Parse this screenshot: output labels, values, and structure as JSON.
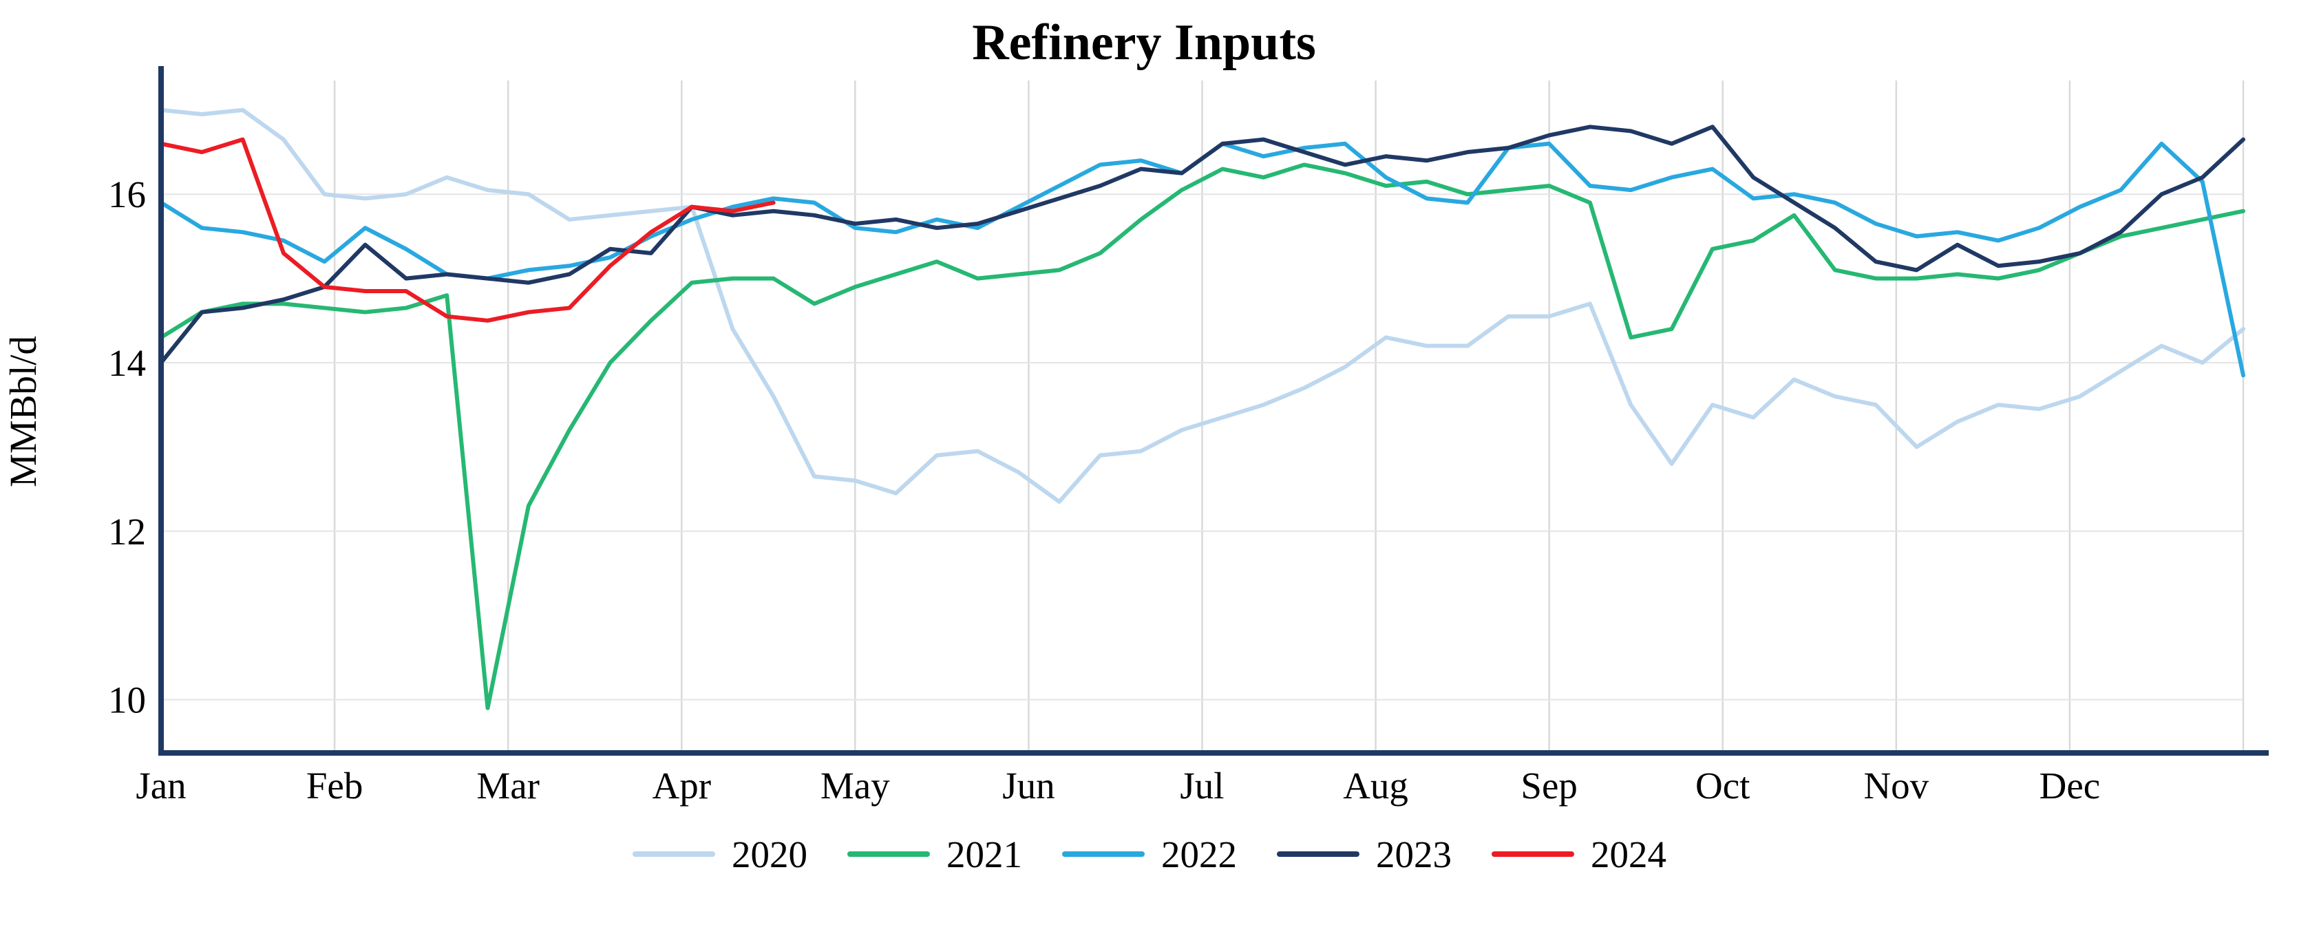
{
  "chart_data": {
    "type": "line",
    "title": "Refinery Inputs",
    "ylabel": "MMBbl/d",
    "xlabel": "",
    "x_unit": "week-of-year",
    "weeks_per_year": 52,
    "month_labels": [
      "Jan",
      "Feb",
      "Mar",
      "Apr",
      "May",
      "Jun",
      "Jul",
      "Aug",
      "Sep",
      "Oct",
      "Nov",
      "Dec"
    ],
    "y_ticks": [
      10,
      12,
      14,
      16
    ],
    "ylim": [
      9.4,
      17.35
    ],
    "grid": true,
    "legend_position": "bottom",
    "axis_color": "#1f3864",
    "grid_color": "#d9d9d9",
    "series": [
      {
        "name": "2020",
        "color": "#bdd7ee",
        "values": [
          17.0,
          16.95,
          17.0,
          16.65,
          16.0,
          15.95,
          16.0,
          16.2,
          16.05,
          16.0,
          15.7,
          15.75,
          15.8,
          15.85,
          14.4,
          13.6,
          12.65,
          12.6,
          12.45,
          12.9,
          12.95,
          12.7,
          12.35,
          12.9,
          12.95,
          13.2,
          13.35,
          13.5,
          13.7,
          13.95,
          14.3,
          14.2,
          14.2,
          14.55,
          14.55,
          14.7,
          13.5,
          12.8,
          13.5,
          13.35,
          13.8,
          13.6,
          13.5,
          13.0,
          13.3,
          13.5,
          13.45,
          13.6,
          13.9,
          14.2,
          14.0,
          14.4
        ]
      },
      {
        "name": "2021",
        "color": "#26b873",
        "values": [
          14.3,
          14.6,
          14.7,
          14.7,
          14.65,
          14.6,
          14.65,
          14.8,
          9.9,
          12.3,
          13.2,
          14.0,
          14.5,
          14.95,
          15.0,
          15.0,
          14.7,
          14.9,
          15.05,
          15.2,
          15.0,
          15.05,
          15.1,
          15.3,
          15.7,
          16.05,
          16.3,
          16.2,
          16.35,
          16.25,
          16.1,
          16.15,
          16.0,
          16.05,
          16.1,
          15.9,
          14.3,
          14.4,
          15.35,
          15.45,
          15.75,
          15.1,
          15.0,
          15.0,
          15.05,
          15.0,
          15.1,
          15.3,
          15.5,
          15.6,
          15.7,
          15.8
        ]
      },
      {
        "name": "2022",
        "color": "#29a8e0",
        "values": [
          15.9,
          15.6,
          15.55,
          15.45,
          15.2,
          15.6,
          15.35,
          15.05,
          15.0,
          15.1,
          15.15,
          15.25,
          15.5,
          15.7,
          15.85,
          15.95,
          15.9,
          15.6,
          15.55,
          15.7,
          15.6,
          15.85,
          16.1,
          16.35,
          16.4,
          16.25,
          16.6,
          16.45,
          16.55,
          16.6,
          16.2,
          15.95,
          15.9,
          16.55,
          16.6,
          16.1,
          16.05,
          16.2,
          16.3,
          15.95,
          16.0,
          15.9,
          15.65,
          15.5,
          15.55,
          15.45,
          15.6,
          15.85,
          16.05,
          16.6,
          16.15,
          13.85
        ]
      },
      {
        "name": "2023",
        "color": "#203864",
        "values": [
          14.0,
          14.6,
          14.65,
          14.75,
          14.9,
          15.4,
          15.0,
          15.05,
          15.0,
          14.95,
          15.05,
          15.35,
          15.3,
          15.85,
          15.75,
          15.8,
          15.75,
          15.65,
          15.7,
          15.6,
          15.65,
          15.8,
          15.95,
          16.1,
          16.3,
          16.25,
          16.6,
          16.65,
          16.5,
          16.35,
          16.45,
          16.4,
          16.5,
          16.55,
          16.7,
          16.8,
          16.75,
          16.6,
          16.8,
          16.2,
          15.9,
          15.6,
          15.2,
          15.1,
          15.4,
          15.15,
          15.2,
          15.3,
          15.55,
          16.0,
          16.2,
          16.65
        ]
      },
      {
        "name": "2024",
        "color": "#ec1c24",
        "values": [
          16.6,
          16.5,
          16.65,
          15.3,
          14.9,
          14.85,
          14.85,
          14.55,
          14.5,
          14.6,
          14.65,
          15.15,
          15.55,
          15.85,
          15.8,
          15.9
        ]
      }
    ]
  }
}
